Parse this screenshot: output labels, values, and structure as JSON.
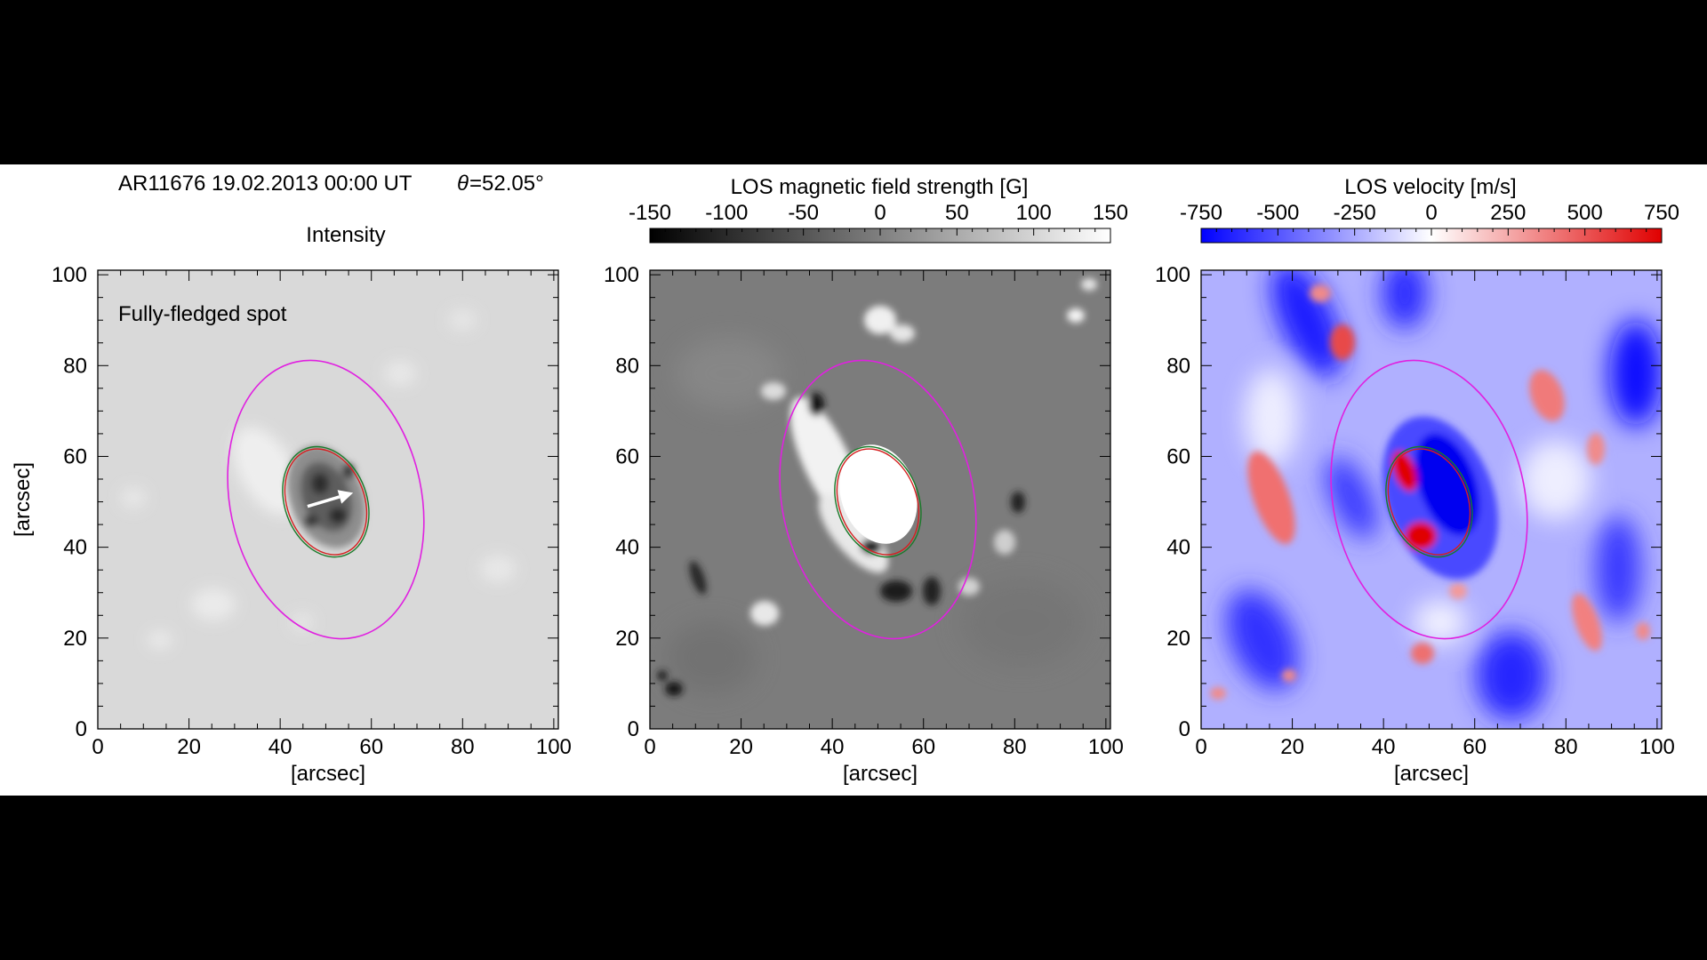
{
  "header": {
    "info_line": "AR11676  19.02.2013 00:00 UT",
    "theta_symbol": "θ",
    "theta_value": "=52.05°"
  },
  "annotation": "Fully-fledged spot",
  "colors": {
    "background": "#000000",
    "panel_background": "#ffffff",
    "ellipse_outer": "#e020e0",
    "contour_umbra": "#d42020",
    "contour_penumbra": "#1a7a2a",
    "arrow": "#ffffff",
    "velocity_negative": "#0000ff",
    "velocity_zero": "#ffffff",
    "velocity_positive": "#e00000"
  },
  "chart_data": [
    {
      "type": "heatmap",
      "title": "Intensity",
      "xlabel": "[arcsec]",
      "ylabel": "[arcsec]",
      "xlim": [
        0,
        101
      ],
      "ylim": [
        0,
        101
      ],
      "x_ticks": [
        0,
        20,
        40,
        60,
        80,
        100
      ],
      "y_ticks": [
        0,
        20,
        40,
        60,
        80,
        100
      ],
      "colormap": "gray",
      "annotation_arrow": {
        "from": [
          46,
          49
        ],
        "to": [
          56,
          52
        ],
        "color": "white"
      },
      "overlays": [
        {
          "name": "outer",
          "shape": "ellipse",
          "center": [
            50,
            50.5
          ],
          "rx": 21,
          "ry": 31,
          "color": "magenta"
        },
        {
          "name": "umbra-penumbra",
          "shape": "ellipse",
          "center": [
            50,
            50
          ],
          "rx": 8.5,
          "ry": 12,
          "color": "red"
        },
        {
          "name": "spot-boundary",
          "shape": "ellipse",
          "center": [
            50,
            50
          ],
          "rx": 9,
          "ry": 12.5,
          "color": "green"
        }
      ]
    },
    {
      "type": "heatmap",
      "title": "LOS magnetic field strength [G]",
      "xlabel": "[arcsec]",
      "ylabel": "",
      "xlim": [
        0,
        101
      ],
      "ylim": [
        0,
        101
      ],
      "x_ticks": [
        0,
        20,
        40,
        60,
        80,
        100
      ],
      "y_ticks": [
        0,
        20,
        40,
        60,
        80,
        100
      ],
      "colormap": "gray",
      "colorbar": {
        "range": [
          -150,
          150
        ],
        "ticks": [
          "-150",
          "-100",
          "-50",
          "0",
          "50",
          "100",
          "150"
        ]
      },
      "overlays": [
        {
          "name": "outer",
          "shape": "ellipse",
          "center": [
            50,
            50.5
          ],
          "rx": 21,
          "ry": 31,
          "color": "magenta"
        },
        {
          "name": "umbra-penumbra",
          "shape": "ellipse",
          "center": [
            50,
            50
          ],
          "rx": 8.5,
          "ry": 12,
          "color": "red"
        },
        {
          "name": "spot-boundary",
          "shape": "ellipse",
          "center": [
            50,
            50
          ],
          "rx": 9,
          "ry": 12.5,
          "color": "green"
        }
      ]
    },
    {
      "type": "heatmap",
      "title": "LOS velocity [m/s]",
      "xlabel": "[arcsec]",
      "ylabel": "",
      "xlim": [
        0,
        101
      ],
      "ylim": [
        0,
        101
      ],
      "x_ticks": [
        0,
        20,
        40,
        60,
        80,
        100
      ],
      "y_ticks": [
        0,
        20,
        40,
        60,
        80,
        100
      ],
      "colormap": "blue-white-red",
      "colorbar": {
        "range": [
          -750,
          750
        ],
        "ticks": [
          "-750",
          "-500",
          "-250",
          "0",
          "250",
          "500",
          "750"
        ]
      },
      "overlays": [
        {
          "name": "outer",
          "shape": "ellipse",
          "center": [
            50,
            50.5
          ],
          "rx": 21,
          "ry": 31,
          "color": "magenta"
        },
        {
          "name": "umbra-penumbra",
          "shape": "ellipse",
          "center": [
            50,
            50
          ],
          "rx": 8.5,
          "ry": 12,
          "color": "red"
        },
        {
          "name": "spot-boundary",
          "shape": "ellipse",
          "center": [
            50,
            50
          ],
          "rx": 9,
          "ry": 12.5,
          "color": "green"
        }
      ]
    }
  ]
}
